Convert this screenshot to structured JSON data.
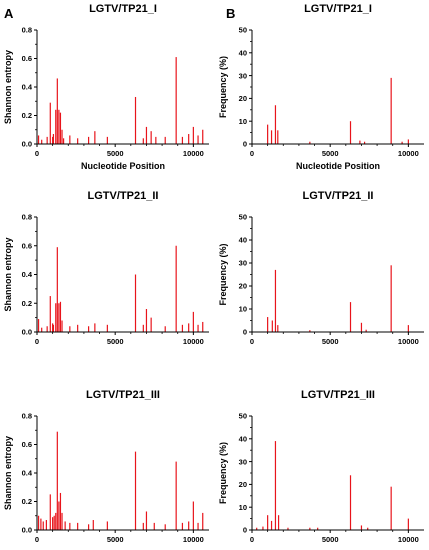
{
  "panel_letters": [
    "A",
    "B"
  ],
  "colors": {
    "series": "#e8141b",
    "axis": "#000000"
  },
  "chart_data": [
    {
      "panel": "A",
      "type": "bar",
      "title": "LGTV/TP21_I",
      "xlabel": "Nucleotide Position",
      "ylabel": "Shannon entropy",
      "xlim": [
        0,
        11000
      ],
      "ylim": [
        0,
        0.8
      ],
      "xticks": [
        0,
        5000,
        10000
      ],
      "yticks": [
        0.0,
        0.2,
        0.4,
        0.6,
        0.8
      ],
      "ytick_labels": [
        "0.0",
        "0.2",
        "0.4",
        "0.6",
        "0.8"
      ],
      "x": [
        100,
        300,
        650,
        850,
        1000,
        1050,
        1200,
        1300,
        1400,
        1500,
        1600,
        1700,
        2100,
        2600,
        3300,
        3700,
        4500,
        6300,
        6800,
        7000,
        7300,
        7600,
        8200,
        8900,
        9300,
        9700,
        10000,
        10300,
        10600
      ],
      "values": [
        0.06,
        0.03,
        0.05,
        0.29,
        0.05,
        0.07,
        0.24,
        0.46,
        0.24,
        0.22,
        0.1,
        0.04,
        0.06,
        0.04,
        0.05,
        0.09,
        0.05,
        0.33,
        0.04,
        0.12,
        0.09,
        0.05,
        0.05,
        0.61,
        0.05,
        0.07,
        0.12,
        0.06,
        0.1
      ]
    },
    {
      "panel": "A",
      "type": "bar",
      "title": "LGTV/TP21_II",
      "xlabel": "",
      "ylabel": "Shannon entropy",
      "xlim": [
        0,
        11000
      ],
      "ylim": [
        0,
        0.8
      ],
      "xticks": [
        0,
        5000,
        10000
      ],
      "yticks": [
        0.0,
        0.2,
        0.4,
        0.6,
        0.8
      ],
      "ytick_labels": [
        "0.0",
        "0.2",
        "0.4",
        "0.6",
        "0.8"
      ],
      "x": [
        100,
        300,
        650,
        850,
        1000,
        1050,
        1200,
        1300,
        1400,
        1500,
        1600,
        2100,
        2600,
        3300,
        3700,
        4500,
        6300,
        6800,
        7000,
        7300,
        8200,
        8900,
        9300,
        9700,
        10000,
        10300,
        10600
      ],
      "values": [
        0.09,
        0.03,
        0.04,
        0.25,
        0.06,
        0.05,
        0.2,
        0.59,
        0.2,
        0.21,
        0.08,
        0.04,
        0.05,
        0.04,
        0.06,
        0.05,
        0.4,
        0.05,
        0.16,
        0.1,
        0.04,
        0.6,
        0.05,
        0.06,
        0.14,
        0.05,
        0.07
      ]
    },
    {
      "panel": "A",
      "type": "bar",
      "title": "LGTV/TP21_III",
      "xlabel": "",
      "ylabel": "Shannon entropy",
      "xlim": [
        0,
        11000
      ],
      "ylim": [
        0,
        0.8
      ],
      "xticks": [
        0,
        5000,
        10000
      ],
      "yticks": [
        0.0,
        0.2,
        0.4,
        0.6,
        0.8
      ],
      "ytick_labels": [
        "0.0",
        "0.2",
        "0.4",
        "0.6",
        "0.8"
      ],
      "x": [
        100,
        250,
        400,
        600,
        850,
        1000,
        1100,
        1200,
        1300,
        1400,
        1500,
        1600,
        1800,
        2100,
        2600,
        3300,
        3600,
        4500,
        6300,
        6800,
        7000,
        7500,
        8200,
        8900,
        9300,
        9700,
        10000,
        10300,
        10600
      ],
      "values": [
        0.1,
        0.08,
        0.06,
        0.07,
        0.25,
        0.09,
        0.1,
        0.12,
        0.69,
        0.2,
        0.26,
        0.12,
        0.06,
        0.05,
        0.05,
        0.04,
        0.07,
        0.06,
        0.55,
        0.05,
        0.13,
        0.05,
        0.04,
        0.48,
        0.05,
        0.06,
        0.2,
        0.05,
        0.12
      ]
    },
    {
      "panel": "B",
      "type": "bar",
      "title": "LGTV/TP21_I",
      "xlabel": "Nucleotide Position",
      "ylabel": "Frequency (%)",
      "xlim": [
        0,
        11000
      ],
      "ylim": [
        0,
        50
      ],
      "xticks": [
        0,
        5000,
        10000
      ],
      "yticks": [
        0,
        10,
        20,
        30,
        40,
        50
      ],
      "ytick_labels": [
        "0",
        "10",
        "20",
        "30",
        "40",
        "50"
      ],
      "x": [
        1000,
        1250,
        1500,
        1650,
        3700,
        6300,
        6900,
        7200,
        8900,
        9600,
        10000
      ],
      "values": [
        8.5,
        6,
        17,
        6,
        1,
        10,
        1.5,
        1,
        29,
        1,
        2
      ]
    },
    {
      "panel": "B",
      "type": "bar",
      "title": "LGTV/TP21_II",
      "xlabel": "",
      "ylabel": "Frequency (%)",
      "xlim": [
        0,
        11000
      ],
      "ylim": [
        0,
        50
      ],
      "xticks": [
        0,
        5000,
        10000
      ],
      "yticks": [
        0,
        10,
        20,
        30,
        40,
        50
      ],
      "ytick_labels": [
        "0",
        "10",
        "20",
        "30",
        "40",
        "50"
      ],
      "x": [
        1000,
        1300,
        1500,
        1650,
        3700,
        6300,
        7000,
        7300,
        8900,
        10000
      ],
      "values": [
        6.5,
        5,
        27,
        3,
        0.8,
        13,
        4,
        1,
        29,
        3
      ]
    },
    {
      "panel": "B",
      "type": "bar",
      "title": "LGTV/TP21_III",
      "xlabel": "",
      "ylabel": "Frequency (%)",
      "xlim": [
        0,
        11000
      ],
      "ylim": [
        0,
        50
      ],
      "xticks": [
        0,
        5000,
        10000
      ],
      "yticks": [
        0,
        10,
        20,
        30,
        40,
        50
      ],
      "ytick_labels": [
        "0",
        "10",
        "20",
        "30",
        "40",
        "50"
      ],
      "x": [
        300,
        700,
        1000,
        1250,
        1500,
        1700,
        2300,
        3700,
        4200,
        6300,
        7000,
        7400,
        8900,
        10000
      ],
      "values": [
        1,
        1.5,
        6.5,
        4,
        39,
        6.5,
        1,
        1,
        1,
        24,
        2,
        1,
        19,
        5
      ]
    }
  ]
}
